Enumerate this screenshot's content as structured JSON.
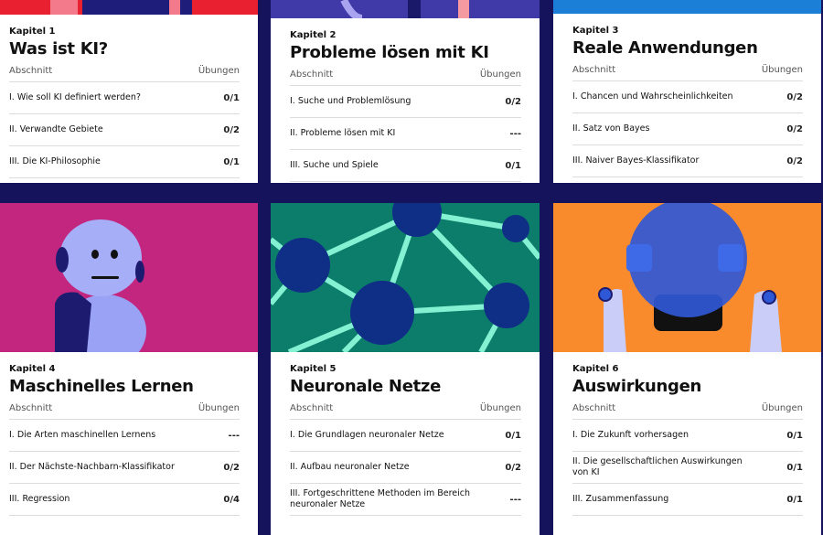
{
  "chapters": [
    {
      "label": "Kapitel 1",
      "title": "Was ist KI?",
      "col_section": "Abschnitt",
      "col_exercises": "Übungen",
      "sections": [
        {
          "name": "I. Wie soll KI definiert werden?",
          "score": "0/1"
        },
        {
          "name": "II. Verwandte Gebiete",
          "score": "0/2"
        },
        {
          "name": "III. Die KI-Philosophie",
          "score": "0/1"
        }
      ]
    },
    {
      "label": "Kapitel 2",
      "title": "Probleme lösen mit KI",
      "col_section": "Abschnitt",
      "col_exercises": "Übungen",
      "sections": [
        {
          "name": "I. Suche und Problemlösung",
          "score": "0/2"
        },
        {
          "name": "II. Probleme lösen mit KI",
          "score": "---"
        },
        {
          "name": "III. Suche und Spiele",
          "score": "0/1"
        }
      ]
    },
    {
      "label": "Kapitel 3",
      "title": "Reale Anwendungen",
      "col_section": "Abschnitt",
      "col_exercises": "Übungen",
      "sections": [
        {
          "name": "I. Chancen und Wahrscheinlichkeiten",
          "score": "0/2"
        },
        {
          "name": "II. Satz von Bayes",
          "score": "0/2"
        },
        {
          "name": "III. Naiver Bayes-Klassifikator",
          "score": "0/2"
        }
      ]
    },
    {
      "label": "Kapitel 4",
      "title": "Maschinelles Lernen",
      "col_section": "Abschnitt",
      "col_exercises": "Übungen",
      "sections": [
        {
          "name": "I. Die Arten maschinellen Lernens",
          "score": "---"
        },
        {
          "name": "II. Der Nächste-Nachbarn-Klassifikator",
          "score": "0/2"
        },
        {
          "name": "III. Regression",
          "score": "0/4"
        }
      ]
    },
    {
      "label": "Kapitel 5",
      "title": "Neuronale Netze",
      "col_section": "Abschnitt",
      "col_exercises": "Übungen",
      "sections": [
        {
          "name": "I. Die Grundlagen neuronaler Netze",
          "score": "0/1"
        },
        {
          "name": "II. Aufbau neuronaler Netze",
          "score": "0/2"
        },
        {
          "name": "III. Fortgeschrittene Methoden im Bereich neuronaler Netze",
          "score": "---"
        }
      ]
    },
    {
      "label": "Kapitel 6",
      "title": "Auswirkungen",
      "col_section": "Abschnitt",
      "col_exercises": "Übungen",
      "sections": [
        {
          "name": "I. Die Zukunft vorhersagen",
          "score": "0/1"
        },
        {
          "name": "II. Die gesellschaftlichen Auswirkungen von KI",
          "score": "0/1"
        },
        {
          "name": "III. Zusammenfassung",
          "score": "0/1"
        }
      ]
    }
  ]
}
